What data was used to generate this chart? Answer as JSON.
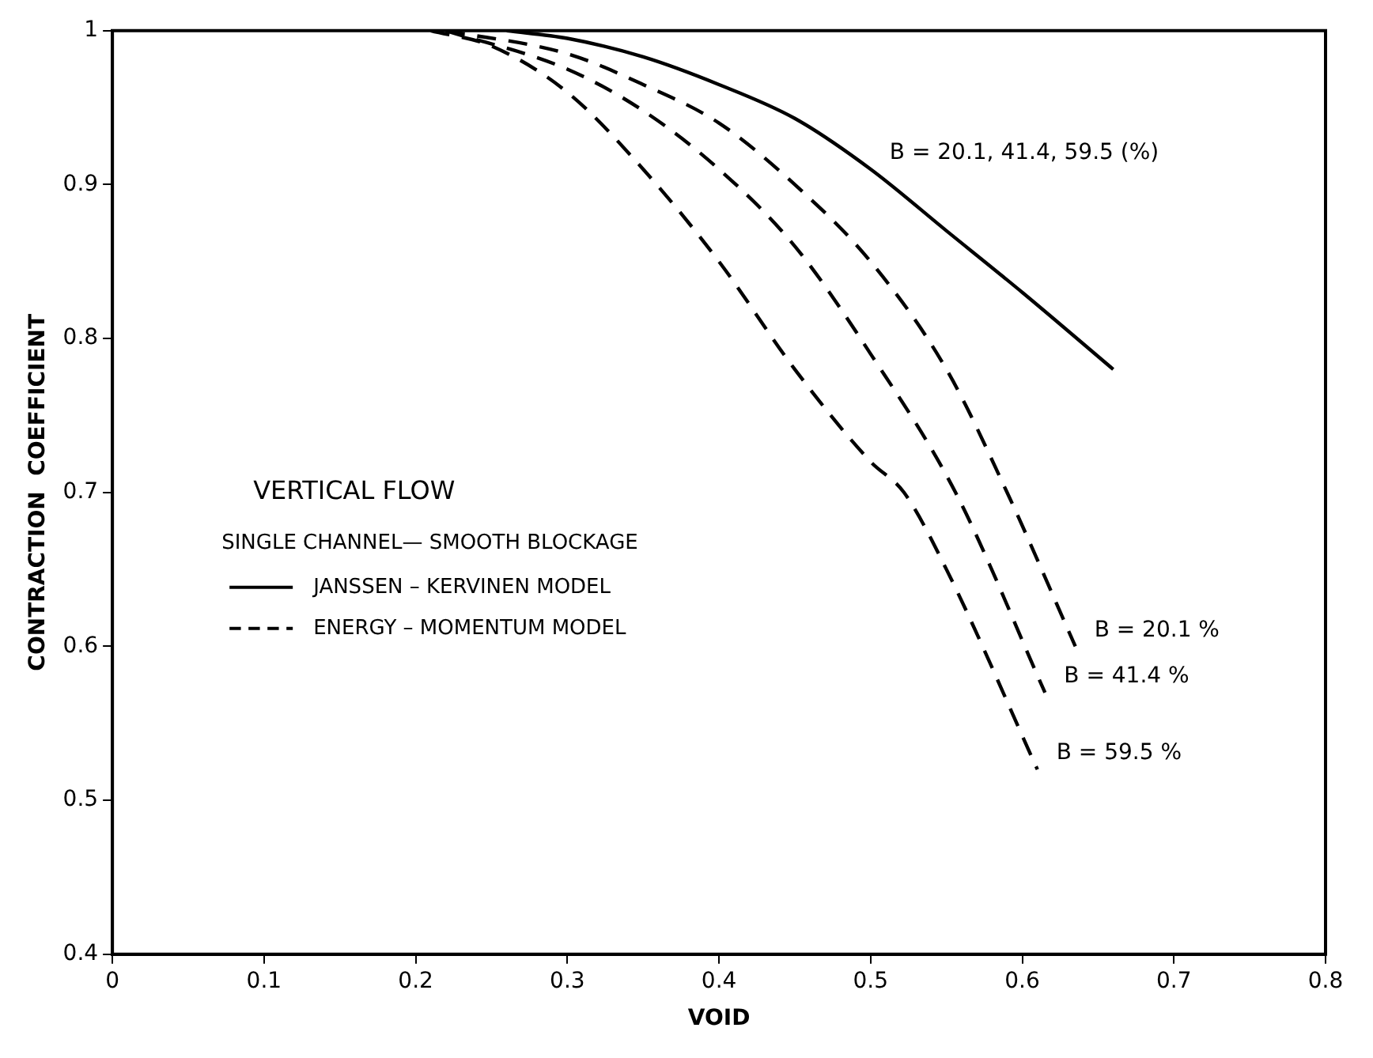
{
  "chart_data": {
    "type": "line",
    "xlabel": "VOID",
    "ylabel": "CONTRACTION  COEFFICIENT",
    "xlim": [
      0,
      0.8
    ],
    "xticks": [
      0,
      0.1,
      0.2,
      0.3,
      0.4,
      0.5,
      0.6,
      0.7,
      0.8
    ],
    "ylim": [
      0.4,
      1.0
    ],
    "yticks": [
      0.4,
      0.5,
      0.6,
      0.7,
      0.8,
      0.9,
      1.0
    ],
    "grid": false,
    "marker": "none",
    "legend": "left",
    "legend_title": "VERTICAL FLOW",
    "series": [
      {
        "name": "JANSSEN – KERVINEN MODEL",
        "color": "#000000",
        "line_style": "solid",
        "x": [
          0.26,
          0.3,
          0.35,
          0.4,
          0.45,
          0.5,
          0.55,
          0.6,
          0.66
        ],
        "values": [
          1.0,
          0.995,
          0.983,
          0.965,
          0.943,
          0.91,
          0.87,
          0.83,
          0.78
        ]
      },
      {
        "name": "ENERGY – MOMENTUM MODEL",
        "color": "#000000",
        "line_style": "dashed",
        "x": [
          0.22,
          0.3,
          0.35,
          0.4,
          0.45,
          0.5,
          0.55,
          0.59,
          0.635
        ],
        "values": [
          1.0,
          0.985,
          0.965,
          0.94,
          0.9,
          0.85,
          0.78,
          0.7,
          0.6
        ]
      },
      {
        "color": "#000000",
        "line_style": "dashed",
        "x": [
          0.22,
          0.3,
          0.35,
          0.4,
          0.45,
          0.5,
          0.556,
          0.615
        ],
        "values": [
          1.0,
          0.975,
          0.948,
          0.91,
          0.86,
          0.79,
          0.7,
          0.57
        ]
      },
      {
        "color": "#000000",
        "line_style": "dashed",
        "x": [
          0.21,
          0.25,
          0.3,
          0.35,
          0.4,
          0.45,
          0.5,
          0.522,
          0.55,
          0.61
        ],
        "values": [
          1.0,
          0.99,
          0.96,
          0.91,
          0.85,
          0.78,
          0.72,
          0.7,
          0.65,
          0.52
        ]
      }
    ],
    "annotations": [
      "SINGLE CHANNEL— SMOOTH BLOCKAGE",
      {
        "text": "B = 20.1, 41.4, 59.5 (%)",
        "x": 0.5,
        "y": 0.91
      },
      {
        "text": "B = 20.1 %",
        "x": 0.635,
        "y": 0.6
      },
      {
        "text": "B = 41.4 %",
        "x": 0.615,
        "y": 0.57
      },
      {
        "text": "B = 59.5 %",
        "x": 0.61,
        "y": 0.52
      }
    ]
  }
}
